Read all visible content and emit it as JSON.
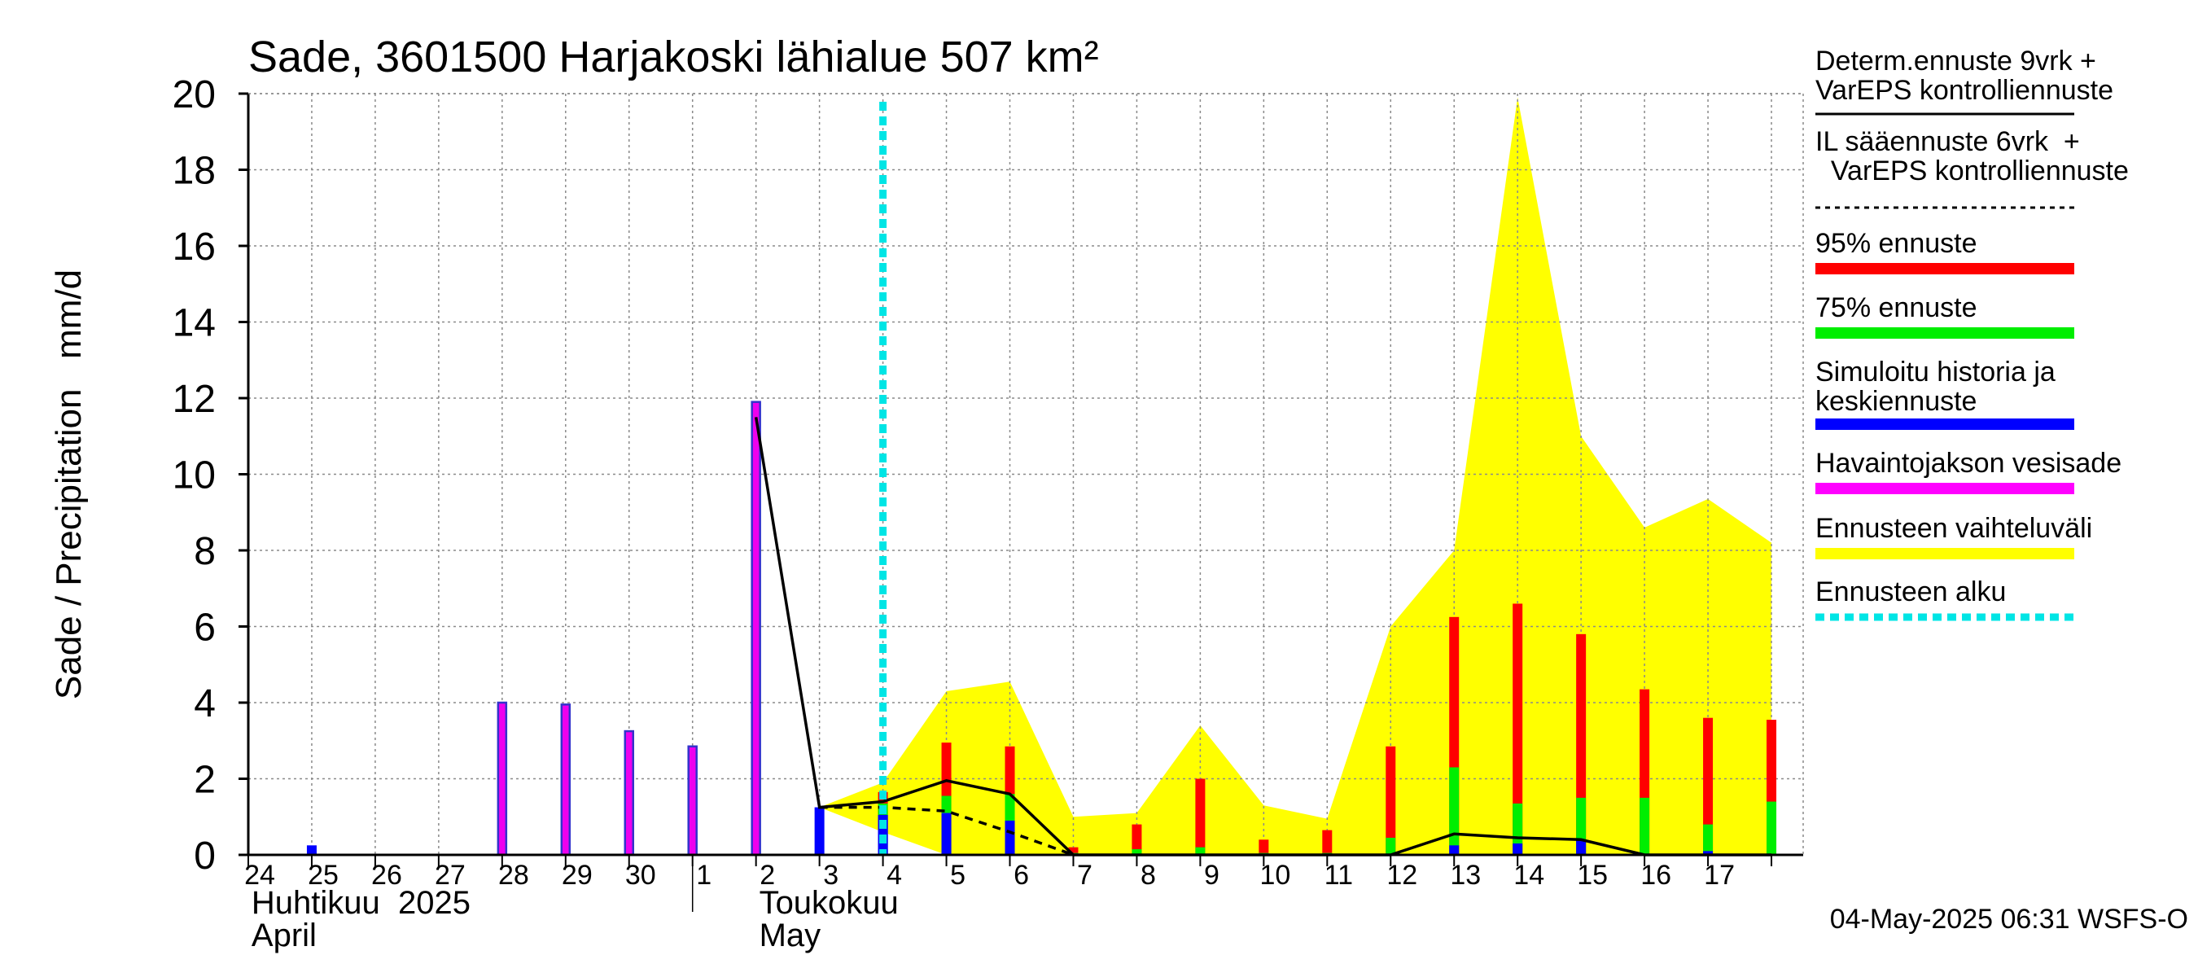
{
  "chart_data": {
    "type": "bar",
    "title": "Sade, 3601500 Harjakoski lähialue 507 km²",
    "ylabel": "Sade / Precipitation   mm/d",
    "ylim": [
      0,
      20
    ],
    "yticks": [
      0,
      2,
      4,
      6,
      8,
      10,
      12,
      14,
      16,
      18,
      20
    ],
    "x_day_labels": [
      "24",
      "25",
      "26",
      "27",
      "28",
      "29",
      "30",
      "1",
      "2",
      "3",
      "4",
      "5",
      "6",
      "7",
      "8",
      "9",
      "10",
      "11",
      "12",
      "13",
      "14",
      "15",
      "16",
      "17"
    ],
    "month_labels": [
      {
        "fi": "Huhtikuu  2025",
        "en": "April"
      },
      {
        "fi": "Toukokuu",
        "en": "May"
      }
    ],
    "forecast_start_day_index": 10,
    "observed_rain": [
      {
        "day_index": 4,
        "value": 4.0
      },
      {
        "day_index": 5,
        "value": 3.95
      },
      {
        "day_index": 6,
        "value": 3.25
      },
      {
        "day_index": 7,
        "value": 2.85
      },
      {
        "day_index": 8,
        "value": 11.9
      }
    ],
    "simulated_history": [
      {
        "day_index": 1,
        "value": 0.25
      },
      {
        "day_index": 9,
        "value": 1.25
      },
      {
        "day_index": 10,
        "value": 1.05
      }
    ],
    "forecast_bars": [
      {
        "day_index": 10,
        "median": 1.05,
        "p75": 1.35,
        "p95": 1.65
      },
      {
        "day_index": 11,
        "median": 1.1,
        "p75": 1.55,
        "p95": 2.95
      },
      {
        "day_index": 12,
        "median": 0.9,
        "p75": 1.6,
        "p95": 2.85
      },
      {
        "day_index": 13,
        "median": 0.0,
        "p75": 0.05,
        "p95": 0.2
      },
      {
        "day_index": 14,
        "median": 0.0,
        "p75": 0.15,
        "p95": 0.8
      },
      {
        "day_index": 15,
        "median": 0.0,
        "p75": 0.2,
        "p95": 2.0
      },
      {
        "day_index": 16,
        "median": 0.0,
        "p75": 0.05,
        "p95": 0.4
      },
      {
        "day_index": 17,
        "median": 0.0,
        "p75": 0.05,
        "p95": 0.65
      },
      {
        "day_index": 18,
        "median": 0.0,
        "p75": 0.45,
        "p95": 2.85
      },
      {
        "day_index": 19,
        "median": 0.25,
        "p75": 2.3,
        "p95": 6.25
      },
      {
        "day_index": 20,
        "median": 0.3,
        "p75": 1.35,
        "p95": 6.6
      },
      {
        "day_index": 21,
        "median": 0.4,
        "p75": 1.5,
        "p95": 5.8
      },
      {
        "day_index": 22,
        "median": 0.0,
        "p75": 1.5,
        "p95": 4.35
      },
      {
        "day_index": 23,
        "median": 0.1,
        "p75": 0.8,
        "p95": 3.6
      },
      {
        "day_index": 24,
        "median": 0.0,
        "p75": 1.4,
        "p95": 3.55
      }
    ],
    "forecast_range_upper": [
      {
        "x": 9.0,
        "y": 1.25
      },
      {
        "x": 10.0,
        "y": 1.9
      },
      {
        "x": 11.0,
        "y": 4.3
      },
      {
        "x": 12.0,
        "y": 4.55
      },
      {
        "x": 13.0,
        "y": 1.0
      },
      {
        "x": 14.0,
        "y": 1.1
      },
      {
        "x": 15.0,
        "y": 3.4
      },
      {
        "x": 16.0,
        "y": 1.3
      },
      {
        "x": 17.0,
        "y": 0.95
      },
      {
        "x": 18.0,
        "y": 6.0
      },
      {
        "x": 19.0,
        "y": 8.0
      },
      {
        "x": 20.0,
        "y": 19.9
      },
      {
        "x": 21.0,
        "y": 11.0
      },
      {
        "x": 22.0,
        "y": 8.6
      },
      {
        "x": 23.0,
        "y": 9.35
      },
      {
        "x": 24.0,
        "y": 8.2
      }
    ],
    "forecast_range_lower": [
      {
        "x": 9.0,
        "y": 1.25
      },
      {
        "x": 10.0,
        "y": 0.6
      },
      {
        "x": 11.0,
        "y": 0.0
      }
    ],
    "deterministic_line": [
      {
        "x": 8.0,
        "y": 11.5
      },
      {
        "x": 9.0,
        "y": 1.25
      },
      {
        "x": 10.0,
        "y": 1.4
      },
      {
        "x": 11.0,
        "y": 1.95
      },
      {
        "x": 12.0,
        "y": 1.6
      },
      {
        "x": 13.0,
        "y": 0.0
      },
      {
        "x": 14.0,
        "y": 0.0
      },
      {
        "x": 15.0,
        "y": 0.0
      },
      {
        "x": 16.0,
        "y": 0.0
      },
      {
        "x": 17.0,
        "y": 0.0
      },
      {
        "x": 18.0,
        "y": 0.0
      },
      {
        "x": 19.0,
        "y": 0.55
      },
      {
        "x": 20.0,
        "y": 0.45
      },
      {
        "x": 21.0,
        "y": 0.4
      },
      {
        "x": 22.0,
        "y": 0.0
      },
      {
        "x": 23.0,
        "y": 0.0
      },
      {
        "x": 24.0,
        "y": 0.0
      }
    ],
    "il_line": [
      {
        "x": 9.0,
        "y": 1.25
      },
      {
        "x": 10.0,
        "y": 1.25
      },
      {
        "x": 11.0,
        "y": 1.15
      },
      {
        "x": 12.0,
        "y": 0.6
      },
      {
        "x": 13.0,
        "y": 0.0
      }
    ],
    "legend": [
      {
        "label": "Determ.ennuste 9vrk +\nVarEPS kontrolliennuste",
        "style": "solid",
        "color": "#000000"
      },
      {
        "label": "IL sääennuste 6vrk  +\n  VarEPS kontrolliennuste",
        "style": "dashed",
        "color": "#000000"
      },
      {
        "label": "95% ennuste",
        "style": "bar",
        "color": "#ff0000"
      },
      {
        "label": "75% ennuste",
        "style": "bar",
        "color": "#00ee00"
      },
      {
        "label": "Simuloitu historia ja\nkeskiennuste",
        "style": "bar",
        "color": "#0000ff"
      },
      {
        "label": "Havaintojakson vesisade",
        "style": "bar",
        "color": "#ff00ff"
      },
      {
        "label": "Ennusteen vaihteluväli",
        "style": "bar",
        "color": "#ffff00"
      },
      {
        "label": "Ennusteen alku",
        "style": "dotted",
        "color": "#00e5e5"
      }
    ],
    "footer": "04-May-2025 06:31 WSFS-O"
  }
}
